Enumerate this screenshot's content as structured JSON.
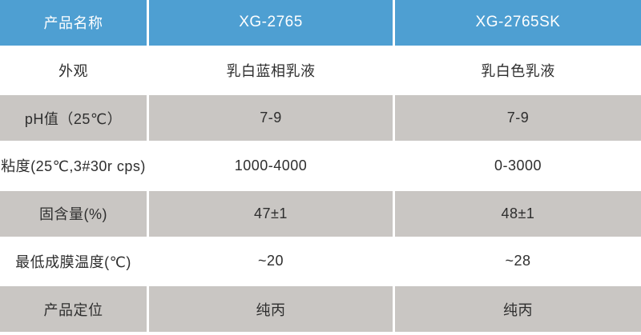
{
  "colors": {
    "header_bg": "#4E9FD2",
    "header_text": "#FFFFFF",
    "row_gray_bg": "#C9C6C3",
    "row_white_bg": "#FFFFFF",
    "body_text": "#2E2E2E"
  },
  "table": {
    "header": {
      "cells": [
        "产品名称",
        "XG-2765",
        "XG-2765SK"
      ]
    },
    "rows": [
      {
        "label": "外观",
        "xg2765": "乳白蓝相乳液",
        "xg2765sk": "乳白色乳液"
      },
      {
        "label": "pH值（25℃）",
        "xg2765": "7-9",
        "xg2765sk": "7-9"
      },
      {
        "label": "粘度(25℃,3#30r cps)",
        "xg2765": "1000-4000",
        "xg2765sk": "0-3000"
      },
      {
        "label": "固含量(%)",
        "xg2765": "47±1",
        "xg2765sk": "48±1"
      },
      {
        "label": "最低成膜温度(℃)",
        "xg2765": "~20",
        "xg2765sk": "~28"
      },
      {
        "label": "产品定位",
        "xg2765": "纯丙",
        "xg2765sk": "纯丙"
      }
    ]
  },
  "chart_data": {
    "type": "table",
    "title": "",
    "columns": [
      "产品名称",
      "XG-2765",
      "XG-2765SK"
    ],
    "rows": [
      [
        "外观",
        "乳白蓝相乳液",
        "乳白色乳液"
      ],
      [
        "pH值（25℃）",
        "7-9",
        "7-9"
      ],
      [
        "粘度(25℃,3#30r cps)",
        "1000-4000",
        "0-3000"
      ],
      [
        "固含量(%)",
        "47±1",
        "48±1"
      ],
      [
        "最低成膜温度(℃)",
        "~20",
        "~28"
      ],
      [
        "产品定位",
        "纯丙",
        "纯丙"
      ]
    ]
  }
}
